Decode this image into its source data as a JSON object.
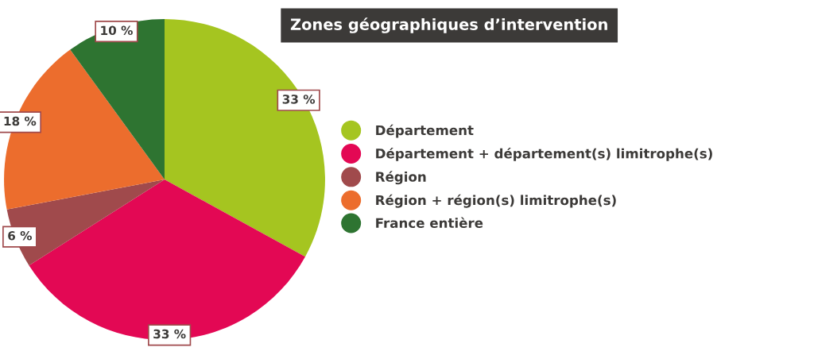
{
  "chart_data": {
    "type": "pie",
    "title": "Zones géographiques d’intervention",
    "categories": [
      "Département",
      "Département + département(s) limitrophe(s)",
      "Région",
      "Région + région(s) limitrophe(s)",
      "France entière"
    ],
    "values": [
      33,
      33,
      6,
      18,
      10
    ],
    "colors": [
      "#a5c520",
      "#e30854",
      "#a04a4c",
      "#ec6d2d",
      "#2e7431"
    ],
    "value_labels": [
      "33 %",
      "33 %",
      "6 %",
      "18 %",
      "10 %"
    ],
    "legend": "right"
  }
}
